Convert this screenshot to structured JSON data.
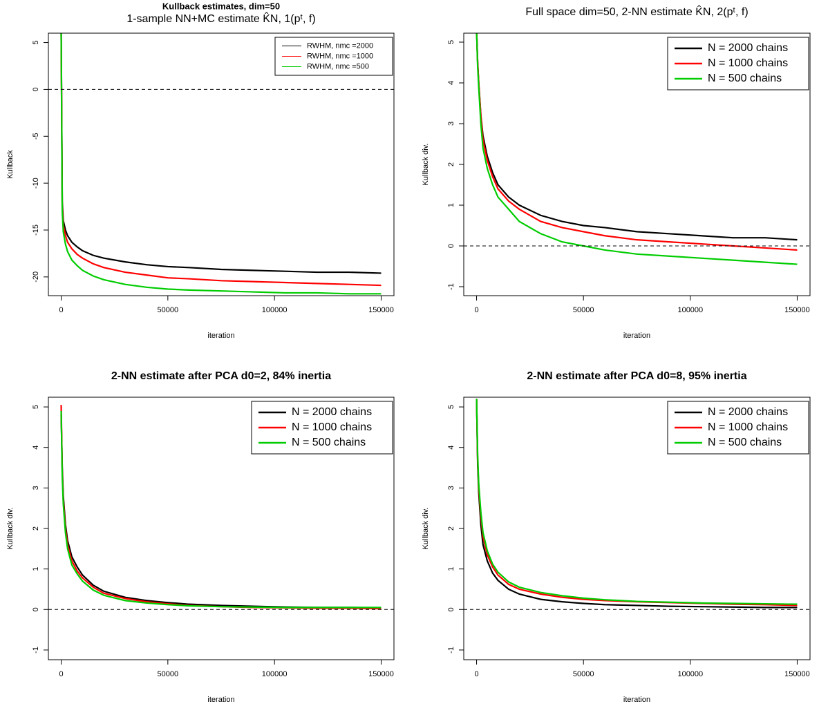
{
  "chart_data": [
    {
      "type": "line",
      "title": "Kullback estimates, dim=50",
      "subtitle": "1-sample NN+MC estimate K̂N, 1(pᵗ, f)",
      "xlabel": "iteration",
      "ylabel": "Kullback",
      "x": [
        0,
        500,
        1000,
        2000,
        3000,
        5000,
        7500,
        10000,
        15000,
        20000,
        30000,
        40000,
        50000,
        60000,
        75000,
        90000,
        105000,
        120000,
        135000,
        150000
      ],
      "series": [
        {
          "name": "RWHM, nmc =2000",
          "color": "#000000",
          "values": [
            6,
            -12,
            -14,
            -15,
            -15.6,
            -16.3,
            -16.8,
            -17.2,
            -17.7,
            -18,
            -18.4,
            -18.7,
            -18.9,
            -19,
            -19.2,
            -19.3,
            -19.4,
            -19.5,
            -19.5,
            -19.6
          ]
        },
        {
          "name": "RWHM, nmc =1000",
          "color": "#ff0000",
          "values": [
            6,
            -12.5,
            -14.5,
            -15.6,
            -16.3,
            -17,
            -17.6,
            -18,
            -18.6,
            -19,
            -19.5,
            -19.8,
            -20.1,
            -20.2,
            -20.4,
            -20.5,
            -20.6,
            -20.7,
            -20.8,
            -20.9
          ]
        },
        {
          "name": "RWHM, nmc =500",
          "color": "#00cc00",
          "values": [
            6,
            -13,
            -15.2,
            -16.5,
            -17.3,
            -18.2,
            -18.8,
            -19.3,
            -19.9,
            -20.3,
            -20.8,
            -21.1,
            -21.3,
            -21.4,
            -21.5,
            -21.6,
            -21.7,
            -21.7,
            -21.8,
            -21.8
          ]
        }
      ],
      "xlim": [
        -6000,
        156000
      ],
      "ylim": [
        -22,
        6
      ],
      "xticks": [
        0,
        50000,
        100000,
        150000
      ],
      "yticks": [
        -20,
        -15,
        -10,
        -5,
        0,
        5
      ],
      "hline": 0,
      "legend": "topright"
    },
    {
      "type": "line",
      "title": "Full space dim=50, 2-NN estimate K̂N, 2(pᵗ, f)",
      "xlabel": "iteration",
      "ylabel": "Kullback div.",
      "x": [
        0,
        500,
        1000,
        2000,
        3000,
        5000,
        7500,
        10000,
        15000,
        20000,
        30000,
        40000,
        50000,
        60000,
        75000,
        90000,
        105000,
        120000,
        135000,
        150000
      ],
      "series": [
        {
          "name": "N = 2000 chains",
          "color": "#000000",
          "values": [
            5.3,
            4.5,
            4,
            3.2,
            2.7,
            2.2,
            1.8,
            1.5,
            1.2,
            1,
            0.75,
            0.6,
            0.5,
            0.45,
            0.35,
            0.3,
            0.25,
            0.2,
            0.2,
            0.15
          ]
        },
        {
          "name": "N = 1000 chains",
          "color": "#ff0000",
          "values": [
            5.3,
            4.5,
            4,
            3.2,
            2.6,
            2.1,
            1.7,
            1.4,
            1.1,
            0.9,
            0.6,
            0.45,
            0.35,
            0.25,
            0.15,
            0.1,
            0.05,
            0,
            -0.05,
            -0.1
          ]
        },
        {
          "name": "N = 500 chains",
          "color": "#00cc00",
          "values": [
            5.3,
            4.4,
            3.9,
            3,
            2.4,
            1.9,
            1.5,
            1.2,
            0.9,
            0.6,
            0.3,
            0.1,
            0,
            -0.1,
            -0.2,
            -0.25,
            -0.3,
            -0.35,
            -0.4,
            -0.45
          ]
        }
      ],
      "xlim": [
        -6000,
        156000
      ],
      "ylim": [
        -1.22,
        5.22
      ],
      "xticks": [
        0,
        50000,
        100000,
        150000
      ],
      "yticks": [
        -1,
        0,
        1,
        2,
        3,
        4,
        5
      ],
      "hline": 0,
      "legend": "topright"
    },
    {
      "type": "line",
      "title": "2-NN estimate after PCA d0=2, 84% inertia",
      "xlabel": "iteration",
      "ylabel": "Kullback div.",
      "x": [
        0,
        500,
        1000,
        2000,
        3000,
        5000,
        7500,
        10000,
        15000,
        20000,
        30000,
        40000,
        50000,
        60000,
        75000,
        90000,
        105000,
        120000,
        135000,
        150000
      ],
      "series": [
        {
          "name": "N = 2000 chains",
          "color": "#000000",
          "values": [
            4.8,
            3.5,
            2.8,
            2.1,
            1.7,
            1.3,
            1.05,
            0.85,
            0.6,
            0.45,
            0.3,
            0.22,
            0.17,
            0.13,
            0.1,
            0.08,
            0.06,
            0.05,
            0.05,
            0.04
          ]
        },
        {
          "name": "N = 1000 chains",
          "color": "#ff0000",
          "values": [
            5.05,
            3.4,
            2.7,
            2,
            1.6,
            1.2,
            0.95,
            0.78,
            0.55,
            0.4,
            0.27,
            0.19,
            0.14,
            0.1,
            0.07,
            0.05,
            0.04,
            0.03,
            0.03,
            0.02
          ]
        },
        {
          "name": "N = 500 chains",
          "color": "#00cc00",
          "values": [
            4.9,
            3.3,
            2.6,
            1.9,
            1.5,
            1.1,
            0.88,
            0.7,
            0.48,
            0.35,
            0.22,
            0.16,
            0.12,
            0.09,
            0.07,
            0.06,
            0.05,
            0.05,
            0.05,
            0.05
          ]
        }
      ],
      "xlim": [
        -6000,
        156000
      ],
      "ylim": [
        -1.24,
        5.24
      ],
      "xticks": [
        0,
        50000,
        100000,
        150000
      ],
      "yticks": [
        -1,
        0,
        1,
        2,
        3,
        4,
        5
      ],
      "hline": 0,
      "legend": "topright"
    },
    {
      "type": "line",
      "title": "2-NN estimate after PCA d0=8, 95% inertia",
      "xlabel": "iteration",
      "ylabel": "Kullback div.",
      "x": [
        0,
        500,
        1000,
        2000,
        3000,
        5000,
        7500,
        10000,
        15000,
        20000,
        30000,
        40000,
        50000,
        60000,
        75000,
        90000,
        105000,
        120000,
        135000,
        150000
      ],
      "series": [
        {
          "name": "N = 2000 chains",
          "color": "#000000",
          "values": [
            5.2,
            3.6,
            2.9,
            2.1,
            1.6,
            1.2,
            0.9,
            0.72,
            0.5,
            0.38,
            0.25,
            0.19,
            0.15,
            0.12,
            0.1,
            0.08,
            0.07,
            0.06,
            0.05,
            0.05
          ]
        },
        {
          "name": "N = 1000 chains",
          "color": "#ff0000",
          "values": [
            5.2,
            3.7,
            3,
            2.3,
            1.8,
            1.35,
            1.05,
            0.85,
            0.62,
            0.5,
            0.38,
            0.3,
            0.25,
            0.22,
            0.19,
            0.17,
            0.15,
            0.13,
            0.12,
            0.1
          ]
        },
        {
          "name": "N = 500 chains",
          "color": "#00cc00",
          "values": [
            5.2,
            3.8,
            3.1,
            2.4,
            1.9,
            1.45,
            1.12,
            0.92,
            0.68,
            0.55,
            0.42,
            0.34,
            0.28,
            0.24,
            0.2,
            0.18,
            0.16,
            0.15,
            0.14,
            0.13
          ]
        }
      ],
      "xlim": [
        -6000,
        156000
      ],
      "ylim": [
        -1.24,
        5.24
      ],
      "xticks": [
        0,
        50000,
        100000,
        150000
      ],
      "yticks": [
        -1,
        0,
        1,
        2,
        3,
        4,
        5
      ],
      "hline": 0,
      "legend": "topright"
    }
  ]
}
